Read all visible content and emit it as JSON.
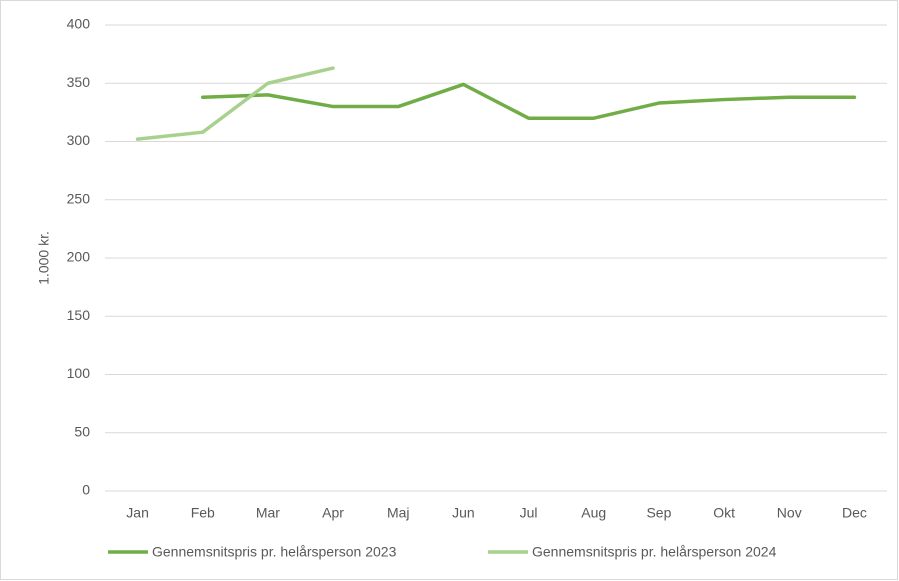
{
  "chart_data": {
    "type": "line",
    "y_label": "1.000 kr.",
    "categories": [
      "Jan",
      "Feb",
      "Mar",
      "Apr",
      "Maj",
      "Jun",
      "Jul",
      "Aug",
      "Sep",
      "Okt",
      "Nov",
      "Dec"
    ],
    "series": [
      {
        "name": "Gennemsnitspris pr. helårsperson 2023",
        "color": "#70ad47",
        "values": [
          null,
          338,
          340,
          330,
          330,
          349,
          320,
          320,
          333,
          336,
          338,
          338
        ]
      },
      {
        "name": "Gennemsnitspris pr. helårsperson 2024",
        "color": "#a9d18e",
        "values": [
          302,
          308,
          350,
          363,
          null,
          null,
          null,
          null,
          null,
          null,
          null,
          null
        ]
      }
    ],
    "ylim": [
      0,
      400
    ],
    "yticks": [
      0,
      50,
      100,
      150,
      200,
      250,
      300,
      350,
      400
    ],
    "grid": true,
    "legend": "bottom"
  }
}
